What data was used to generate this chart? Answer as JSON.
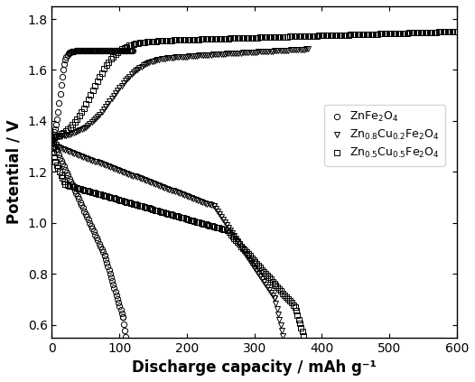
{
  "title": "",
  "xlabel": "Discharge capacity / mAh g⁻¹",
  "ylabel": "Potential / V",
  "xlim": [
    0,
    600
  ],
  "ylim": [
    0.55,
    1.85
  ],
  "xticks": [
    0,
    100,
    200,
    300,
    400,
    500,
    600
  ],
  "yticks": [
    0.6,
    0.8,
    1.0,
    1.2,
    1.4,
    1.6,
    1.8
  ],
  "marker_circle": "o",
  "marker_triangle": "v",
  "marker_square": "s",
  "color": "black",
  "markersize": 4.5,
  "figsize": [
    5.26,
    4.23
  ],
  "dpi": 100,
  "legend_labels_math": [
    "$\\mathrm{ZnFe_2O_4}$",
    "$\\mathrm{Zn_{0.8}Cu_{0.2}Fe_2O_4}$",
    "$\\mathrm{Zn_{0.5}Cu_{0.5}Fe_2O_4}$"
  ]
}
